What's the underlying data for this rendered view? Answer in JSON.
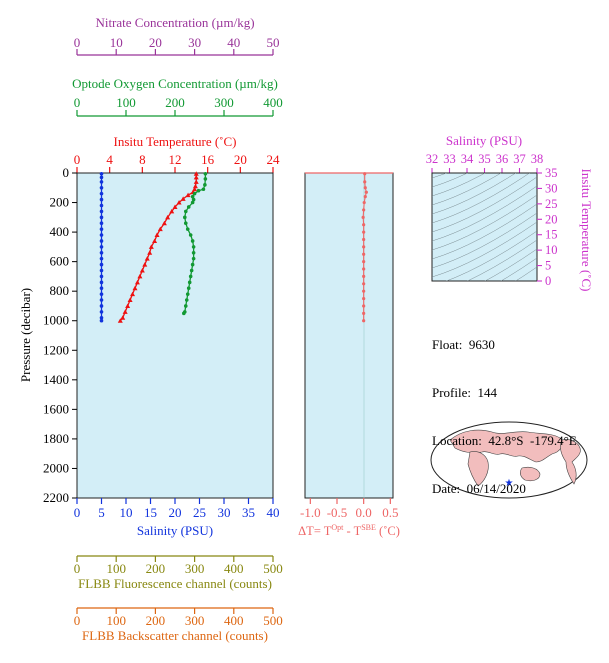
{
  "colors": {
    "nitrate": "#993399",
    "oxygen": "#119933",
    "temperature": "#ee1111",
    "salinity": "#1133dd",
    "delta_t": "#ee6666",
    "fluorescence": "#888811",
    "backscatter": "#dd6611",
    "plot_bg": "#d3eef7",
    "inset": "#cc33cc"
  },
  "info": {
    "float": "Float:  9630",
    "profile": "Profile:  144",
    "location": "Location:  42.8°S  -179.4°E",
    "date": "Date:  06/14/2020"
  },
  "chart_data": [
    {
      "type": "line",
      "title": "",
      "ylabel": "Pressure (decibar)",
      "ylim": [
        2200,
        0
      ],
      "yticks": [
        "0",
        "200",
        "400",
        "600",
        "800",
        "1000",
        "1200",
        "1400",
        "1600",
        "1800",
        "2000",
        "2200"
      ],
      "yticks_values": [
        0,
        200,
        400,
        600,
        800,
        1000,
        1200,
        1400,
        1600,
        1800,
        2000,
        2200
      ],
      "axes": {
        "nitrate": {
          "label": "Nitrate Concentration (µm/kg)",
          "range": [
            0,
            50
          ],
          "ticks": [
            "0",
            "10",
            "20",
            "30",
            "40",
            "50"
          ]
        },
        "oxygen": {
          "label": "Optode Oxygen Concentration (µm/kg)",
          "range": [
            0,
            400
          ],
          "ticks": [
            "0",
            "100",
            "200",
            "300",
            "400"
          ]
        },
        "temperature": {
          "label": "Insitu Temperature (˚C)",
          "range": [
            0,
            24
          ],
          "ticks": [
            "0",
            "4",
            "8",
            "12",
            "16",
            "20",
            "24"
          ]
        },
        "salinity": {
          "label": "Salinity (PSU)",
          "range": [
            0,
            40
          ],
          "ticks": [
            "0",
            "5",
            "10",
            "15",
            "20",
            "25",
            "30",
            "35",
            "40"
          ]
        },
        "fluorescence": {
          "label": "FLBB Fluorescence channel (counts)",
          "range": [
            0,
            500
          ],
          "ticks": [
            "0",
            "100",
            "200",
            "300",
            "400",
            "500"
          ]
        },
        "backscatter": {
          "label": "FLBB Backscatter channel (counts)",
          "range": [
            0,
            500
          ],
          "ticks": [
            "0",
            "100",
            "200",
            "300",
            "400",
            "500"
          ]
        }
      },
      "series": [
        {
          "name": "Insitu Temperature",
          "axis": "temperature",
          "points": [
            [
              14.6,
              5
            ],
            [
              14.6,
              30
            ],
            [
              14.6,
              60
            ],
            [
              14.5,
              90
            ],
            [
              14.4,
              110
            ],
            [
              14.2,
              130
            ],
            [
              13.6,
              150
            ],
            [
              13.0,
              175
            ],
            [
              12.5,
              200
            ],
            [
              12.0,
              230
            ],
            [
              11.6,
              260
            ],
            [
              11.1,
              300
            ],
            [
              10.7,
              340
            ],
            [
              10.2,
              380
            ],
            [
              9.8,
              420
            ],
            [
              9.5,
              460
            ],
            [
              9.1,
              500
            ],
            [
              8.9,
              540
            ],
            [
              8.6,
              580
            ],
            [
              8.3,
              620
            ],
            [
              8.0,
              660
            ],
            [
              7.7,
              700
            ],
            [
              7.4,
              740
            ],
            [
              7.1,
              780
            ],
            [
              6.8,
              820
            ],
            [
              6.5,
              860
            ],
            [
              6.2,
              900
            ],
            [
              5.9,
              940
            ],
            [
              5.6,
              980
            ],
            [
              5.3,
              1000
            ]
          ]
        },
        {
          "name": "Salinity",
          "axis": "salinity",
          "points": [
            [
              5.0,
              5
            ],
            [
              5.0,
              30
            ],
            [
              5.0,
              60
            ],
            [
              5.0,
              100
            ],
            [
              5.0,
              140
            ],
            [
              5.0,
              180
            ],
            [
              5.0,
              220
            ],
            [
              5.0,
              260
            ],
            [
              5.0,
              300
            ],
            [
              5.0,
              340
            ],
            [
              5.0,
              380
            ],
            [
              5.0,
              420
            ],
            [
              5.0,
              460
            ],
            [
              5.0,
              500
            ],
            [
              5.0,
              540
            ],
            [
              5.0,
              580
            ],
            [
              5.0,
              620
            ],
            [
              5.0,
              660
            ],
            [
              5.0,
              700
            ],
            [
              5.0,
              740
            ],
            [
              5.0,
              780
            ],
            [
              5.0,
              820
            ],
            [
              5.0,
              860
            ],
            [
              5.0,
              900
            ],
            [
              5.0,
              940
            ],
            [
              5.0,
              980
            ],
            [
              5.0,
              1000
            ]
          ]
        },
        {
          "name": "Optode Oxygen",
          "axis": "oxygen",
          "points": [
            [
              262,
              5
            ],
            [
              262,
              40
            ],
            [
              261,
              80
            ],
            [
              258,
              110
            ],
            [
              248,
              120
            ],
            [
              240,
              140
            ],
            [
              236,
              160
            ],
            [
              238,
              180
            ],
            [
              236,
              200
            ],
            [
              228,
              230
            ],
            [
              222,
              260
            ],
            [
              220,
              300
            ],
            [
              222,
              340
            ],
            [
              226,
              380
            ],
            [
              232,
              420
            ],
            [
              236,
              460
            ],
            [
              238,
              500
            ],
            [
              238,
              540
            ],
            [
              238,
              580
            ],
            [
              236,
              620
            ],
            [
              234,
              660
            ],
            [
              232,
              700
            ],
            [
              230,
              740
            ],
            [
              228,
              780
            ],
            [
              226,
              820
            ],
            [
              224,
              860
            ],
            [
              222,
              900
            ],
            [
              220,
              940
            ],
            [
              218,
              950
            ]
          ]
        },
        {
          "name": "ΔT",
          "axis": "delta_t",
          "points": [
            [
              0.02,
              5
            ],
            [
              0.02,
              60
            ],
            [
              0.03,
              100
            ],
            [
              0.05,
              130
            ],
            [
              0.03,
              160
            ],
            [
              0.01,
              200
            ],
            [
              0.0,
              250
            ],
            [
              -0.01,
              300
            ],
            [
              0.0,
              350
            ],
            [
              0.0,
              400
            ],
            [
              0.0,
              450
            ],
            [
              0.0,
              500
            ],
            [
              0.0,
              550
            ],
            [
              0.0,
              600
            ],
            [
              0.0,
              650
            ],
            [
              0.0,
              700
            ],
            [
              0.0,
              750
            ],
            [
              0.0,
              800
            ],
            [
              0.0,
              850
            ],
            [
              0.0,
              900
            ],
            [
              0.0,
              950
            ],
            [
              0.0,
              1000
            ]
          ]
        }
      ]
    },
    {
      "type": "line",
      "title": "",
      "xlabel": "ΔT= T",
      "xlabel_sup1": "Opt",
      "xlabel_mid": " - T",
      "xlabel_sup2": "SBE",
      "xlabel_end": " (˚C)",
      "xlim": [
        -1.1,
        0.55
      ],
      "xticks": [
        "-1.0",
        "-0.5",
        "0.0",
        "0.5"
      ],
      "xticks_values": [
        -1.0,
        -0.5,
        0.0,
        0.5
      ]
    },
    {
      "type": "line",
      "title": "",
      "xlabel": "Salinity (PSU)",
      "ylabel": "Insitu Temperature (˚C)",
      "xlim": [
        32,
        38
      ],
      "ylim": [
        0,
        35
      ],
      "xticks": [
        "32",
        "33",
        "34",
        "35",
        "36",
        "37",
        "38"
      ],
      "yticks": [
        "0",
        "5",
        "10",
        "15",
        "20",
        "25",
        "30",
        "35"
      ]
    }
  ]
}
